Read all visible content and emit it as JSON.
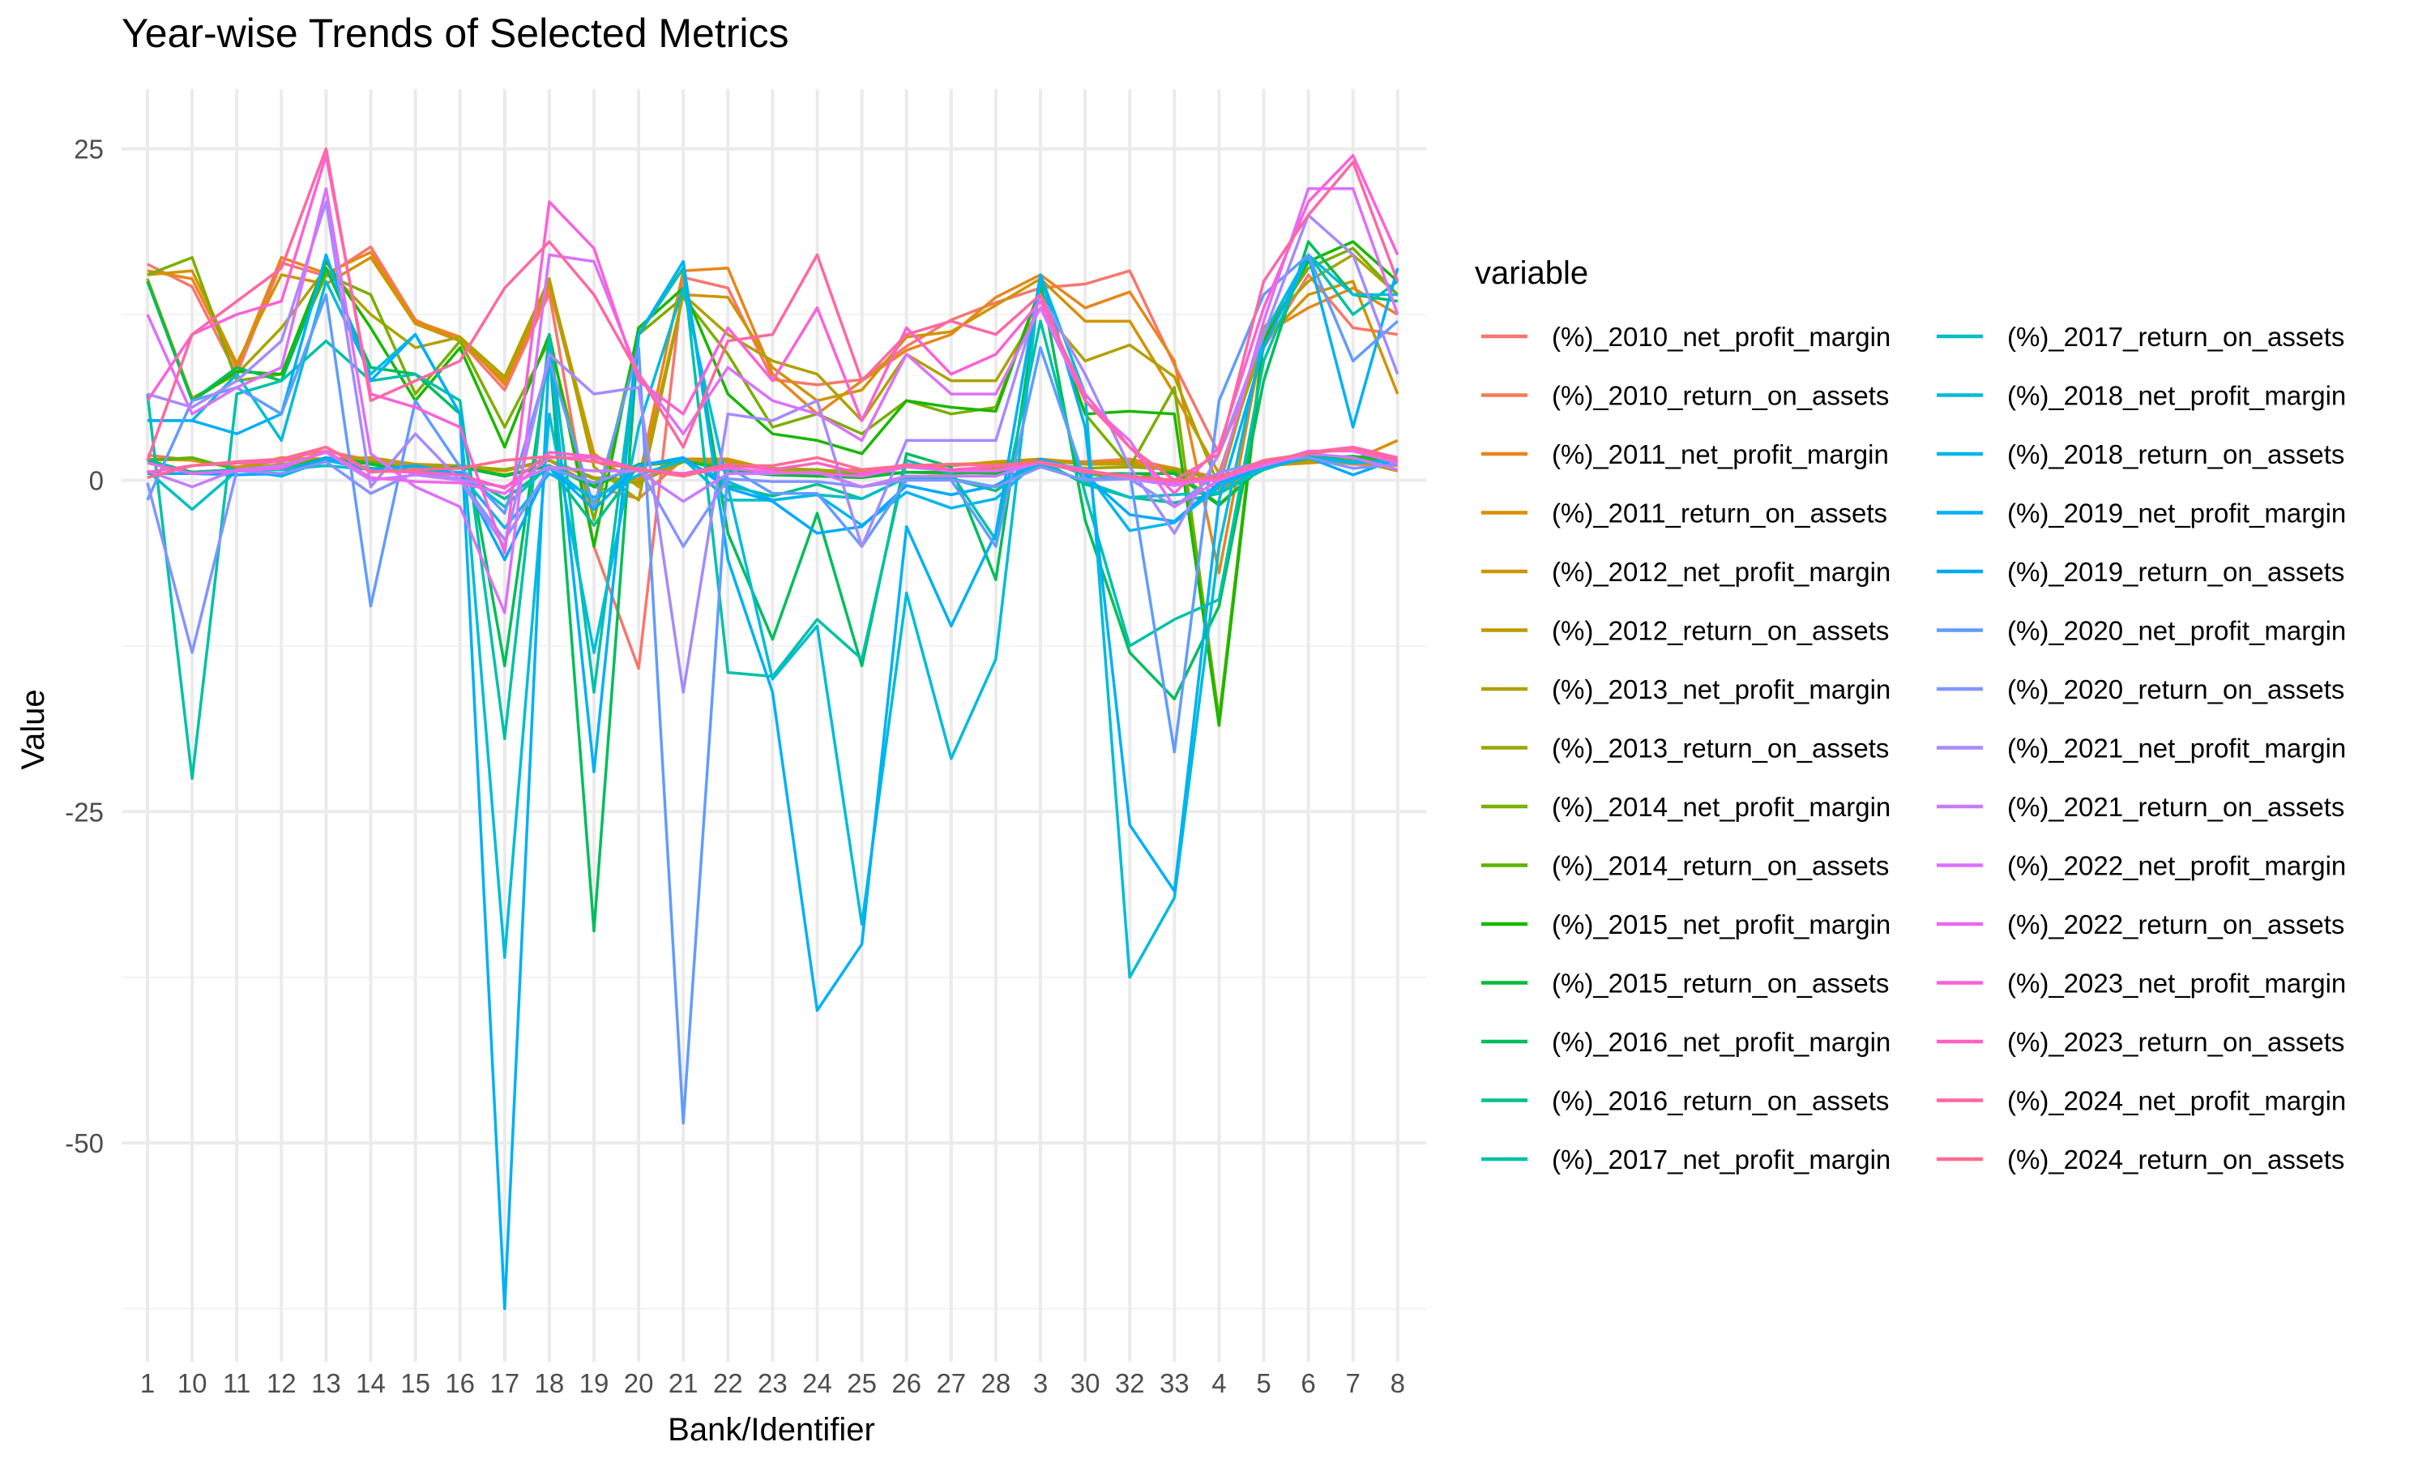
{
  "chart_data": {
    "type": "line",
    "title": "Year-wise Trends of Selected Metrics",
    "xlabel": "Bank/Identifier",
    "ylabel": "Value",
    "categories": [
      "1",
      "10",
      "11",
      "12",
      "13",
      "14",
      "15",
      "16",
      "17",
      "18",
      "19",
      "20",
      "21",
      "22",
      "23",
      "24",
      "25",
      "26",
      "27",
      "28",
      "3",
      "30",
      "32",
      "33",
      "4",
      "5",
      "6",
      "7",
      "8"
    ],
    "ylim": [
      -66.5,
      29.5
    ],
    "yticks": [
      -50,
      -25,
      0,
      25
    ],
    "ytick_labels": [
      "-50",
      "-25",
      "0",
      "25"
    ],
    "grid": true,
    "legend": {
      "title": "variable",
      "placement": "right",
      "columns": 2
    },
    "series": [
      {
        "name": "(%)_2010_net_profit_margin",
        "color": "#F8766D",
        "values": [
          16.3,
          14.6,
          8.0,
          16.4,
          15.4,
          17.6,
          12.1,
          10.5,
          6.8,
          14.1,
          -5.0,
          -14.2,
          15.3,
          14.5,
          7.6,
          7.2,
          7.6,
          10.1,
          12.1,
          13.4,
          14.5,
          14.8,
          15.8,
          8.7,
          2.0,
          10.0,
          15.5,
          11.5,
          11.0
        ]
      },
      {
        "name": "(%)_2010_return_on_assets",
        "color": "#F27D52",
        "values": [
          1.9,
          1.5,
          1.0,
          1.6,
          2.2,
          1.5,
          1.2,
          1.0,
          0.7,
          1.5,
          -0.5,
          -1.4,
          1.6,
          1.4,
          0.8,
          0.7,
          0.8,
          1.0,
          1.2,
          1.3,
          1.5,
          1.4,
          1.6,
          0.9,
          0.2,
          1.0,
          1.6,
          1.2,
          1.1
        ]
      },
      {
        "name": "(%)_2011_net_profit_margin",
        "color": "#E7861B",
        "values": [
          15.8,
          15.2,
          8.5,
          16.8,
          15.6,
          17.2,
          12.0,
          10.8,
          7.2,
          14.6,
          1.5,
          0.0,
          15.8,
          16.0,
          8.0,
          5.0,
          7.5,
          9.8,
          11.0,
          13.8,
          15.5,
          13.0,
          14.2,
          9.0,
          -7.0,
          11.0,
          13.0,
          14.5,
          12.5
        ]
      },
      {
        "name": "(%)_2011_return_on_assets",
        "color": "#DB8E00",
        "values": [
          1.6,
          1.5,
          0.9,
          1.7,
          1.6,
          1.7,
          1.2,
          1.1,
          0.7,
          1.5,
          0.2,
          0.0,
          1.6,
          1.6,
          0.8,
          0.5,
          0.8,
          1.0,
          1.1,
          1.4,
          1.6,
          1.3,
          1.4,
          0.9,
          -0.7,
          1.1,
          1.3,
          1.5,
          3.0
        ]
      },
      {
        "name": "(%)_2012_net_profit_margin",
        "color": "#D09400",
        "values": [
          15.5,
          15.8,
          8.8,
          15.5,
          14.8,
          16.8,
          11.8,
          10.5,
          7.5,
          15.0,
          2.0,
          -0.5,
          14.0,
          13.8,
          8.5,
          6.0,
          6.8,
          10.8,
          11.2,
          13.2,
          15.2,
          12.0,
          12.0,
          6.5,
          0.5,
          10.5,
          14.0,
          15.0,
          6.5
        ]
      },
      {
        "name": "(%)_2012_return_on_assets",
        "color": "#BE9C00",
        "values": [
          1.5,
          1.6,
          0.9,
          1.5,
          1.5,
          1.7,
          1.2,
          1.0,
          0.8,
          1.5,
          0.2,
          -0.1,
          1.4,
          1.4,
          0.9,
          0.6,
          0.7,
          1.1,
          1.1,
          1.3,
          1.5,
          1.2,
          1.2,
          0.7,
          0.1,
          1.1,
          1.4,
          1.5,
          0.7
        ]
      },
      {
        "name": "(%)_2013_net_profit_margin",
        "color": "#AEA200",
        "values": [
          15.2,
          6.2,
          8.0,
          11.5,
          16.0,
          12.5,
          10.0,
          10.8,
          7.8,
          15.2,
          1.0,
          -1.5,
          14.0,
          11.0,
          9.0,
          8.0,
          4.5,
          9.5,
          7.5,
          7.5,
          13.0,
          9.0,
          10.2,
          7.8,
          -0.5,
          11.5,
          15.0,
          17.0,
          14.0
        ]
      },
      {
        "name": "(%)_2013_return_on_assets",
        "color": "#9CA700",
        "values": [
          1.5,
          0.6,
          0.8,
          1.2,
          1.6,
          1.3,
          1.0,
          1.1,
          0.8,
          1.5,
          0.1,
          -0.2,
          1.4,
          1.1,
          0.9,
          0.8,
          0.5,
          1.0,
          0.8,
          0.8,
          1.3,
          0.9,
          1.0,
          0.8,
          0.0,
          1.2,
          1.5,
          1.7,
          1.4
        ]
      },
      {
        "name": "(%)_2014_net_profit_margin",
        "color": "#7CAE00",
        "values": [
          15.5,
          16.8,
          7.5,
          8.0,
          15.5,
          14.0,
          6.5,
          10.5,
          4.0,
          10.5,
          -3.0,
          11.0,
          13.8,
          9.5,
          4.0,
          5.0,
          3.5,
          6.0,
          5.0,
          5.5,
          14.5,
          5.0,
          1.0,
          7.0,
          -18.0,
          11.0,
          16.0,
          17.5,
          14.0
        ]
      },
      {
        "name": "(%)_2014_return_on_assets",
        "color": "#5BB300",
        "values": [
          1.5,
          1.7,
          0.8,
          0.8,
          1.6,
          1.4,
          0.7,
          1.0,
          0.4,
          1.1,
          -0.3,
          1.1,
          1.4,
          1.0,
          0.4,
          0.5,
          0.4,
          0.6,
          0.5,
          0.6,
          1.5,
          0.5,
          0.1,
          0.7,
          -1.8,
          1.1,
          1.6,
          1.8,
          1.4
        ]
      },
      {
        "name": "(%)_2015_net_profit_margin",
        "color": "#19B700",
        "values": [
          15.0,
          6.0,
          8.2,
          8.0,
          16.5,
          11.5,
          6.0,
          10.0,
          2.5,
          11.0,
          -5.0,
          11.5,
          14.5,
          6.5,
          3.5,
          3.0,
          2.0,
          6.0,
          5.5,
          5.2,
          14.5,
          5.0,
          5.2,
          5.0,
          -18.5,
          10.5,
          16.5,
          18.0,
          15.0
        ]
      },
      {
        "name": "(%)_2015_return_on_assets",
        "color": "#00BA38",
        "values": [
          1.5,
          0.6,
          0.8,
          0.8,
          1.7,
          1.2,
          0.6,
          1.0,
          0.3,
          1.1,
          -0.5,
          1.2,
          1.5,
          0.7,
          0.4,
          0.3,
          0.2,
          0.6,
          0.6,
          0.5,
          1.5,
          0.5,
          0.5,
          0.5,
          -1.9,
          1.1,
          1.7,
          1.8,
          1.5
        ]
      },
      {
        "name": "(%)_2016_net_profit_margin",
        "color": "#00BD5C",
        "values": [
          15.0,
          6.0,
          8.5,
          7.5,
          16.0,
          8.5,
          8.0,
          5.0,
          -14.0,
          10.0,
          -34.0,
          11.0,
          16.0,
          -4.0,
          -12.0,
          -2.5,
          -14.0,
          2.0,
          1.0,
          -7.5,
          15.0,
          -3.0,
          -13.0,
          -16.5,
          -9.5,
          7.5,
          18.0,
          14.0,
          13.5
        ]
      },
      {
        "name": "(%)_2016_return_on_assets",
        "color": "#00C08B",
        "values": [
          1.5,
          0.6,
          0.8,
          0.8,
          1.6,
          0.9,
          0.8,
          0.5,
          -1.4,
          1.0,
          -3.4,
          1.1,
          1.6,
          -0.4,
          -1.2,
          -0.3,
          -1.4,
          0.2,
          0.1,
          -0.8,
          1.5,
          -0.3,
          -1.3,
          -1.7,
          -1.0,
          0.8,
          1.8,
          1.4,
          1.4
        ]
      },
      {
        "name": "(%)_2017_net_profit_margin",
        "color": "#00C1A7",
        "values": [
          6.5,
          -22.5,
          6.5,
          7.5,
          10.5,
          7.5,
          8.0,
          6.0,
          -19.5,
          11.0,
          -16.0,
          11.0,
          16.0,
          -14.5,
          -14.8,
          -10.5,
          -13.5,
          1.5,
          0.5,
          -4.5,
          12.0,
          -1.0,
          -12.5,
          -10.5,
          -9.0,
          9.0,
          17.0,
          12.5,
          15.0
        ]
      },
      {
        "name": "(%)_2017_return_on_assets",
        "color": "#00BFC4",
        "values": [
          0.7,
          -2.2,
          0.7,
          0.8,
          1.1,
          0.8,
          0.8,
          0.6,
          -2.0,
          1.1,
          -1.6,
          1.1,
          1.6,
          -1.5,
          -1.5,
          -1.1,
          -1.4,
          0.2,
          0.1,
          -0.5,
          1.2,
          -0.1,
          -1.3,
          -1.1,
          -0.9,
          0.9,
          1.7,
          1.3,
          1.5
        ]
      },
      {
        "name": "(%)_2018_net_profit_margin",
        "color": "#00BCD8",
        "values": [
          4.5,
          4.5,
          8.0,
          3.0,
          15.0,
          8.0,
          11.0,
          5.0,
          -36.0,
          5.0,
          -13.0,
          4.0,
          14.5,
          -0.5,
          -15.0,
          -11.0,
          -33.5,
          -8.5,
          -21.0,
          -13.5,
          15.5,
          6.5,
          -37.5,
          -31.5,
          -5.0,
          11.0,
          17.0,
          14.0,
          14.0
        ]
      },
      {
        "name": "(%)_2018_return_on_assets",
        "color": "#00B6EB",
        "values": [
          0.5,
          0.5,
          0.8,
          0.3,
          1.5,
          0.8,
          1.1,
          0.5,
          -3.6,
          0.5,
          -1.3,
          0.4,
          1.5,
          -0.1,
          -1.5,
          -1.1,
          -3.4,
          -0.9,
          -2.1,
          -1.4,
          1.6,
          0.7,
          -3.8,
          -3.2,
          -0.5,
          1.1,
          1.7,
          1.4,
          1.4
        ]
      },
      {
        "name": "(%)_2019_net_profit_margin",
        "color": "#00B0F6",
        "values": [
          4.5,
          4.5,
          3.5,
          5.0,
          17.0,
          7.5,
          11.0,
          5.0,
          -62.5,
          10.0,
          -22.0,
          11.0,
          16.5,
          -6.0,
          -16.0,
          -40.0,
          -35.0,
          -3.5,
          -11.0,
          -4.0,
          15.5,
          4.0,
          -26.0,
          -31.0,
          -1.5,
          10.0,
          17.0,
          4.0,
          16.0
        ]
      },
      {
        "name": "(%)_2019_return_on_assets",
        "color": "#00A9FF",
        "values": [
          0.5,
          0.5,
          0.4,
          0.5,
          1.7,
          0.8,
          1.1,
          0.5,
          -6.0,
          1.0,
          -2.2,
          1.1,
          1.7,
          -0.6,
          -1.6,
          -4.0,
          -3.5,
          -0.4,
          -1.1,
          -0.4,
          1.6,
          0.4,
          -2.6,
          -3.1,
          -0.2,
          1.0,
          1.7,
          0.4,
          1.6
        ]
      },
      {
        "name": "(%)_2020_net_profit_margin",
        "color": "#619CFF",
        "values": [
          -1.5,
          6.0,
          7.0,
          5.0,
          14.0,
          -9.5,
          6.0,
          1.0,
          -2.5,
          9.0,
          -2.0,
          10.0,
          -48.5,
          1.0,
          -1.0,
          -1.0,
          -5.0,
          0.0,
          0.0,
          -5.0,
          10.0,
          0.0,
          0.5,
          -20.5,
          6.0,
          14.0,
          17.0,
          9.0,
          12.0
        ]
      },
      {
        "name": "(%)_2020_return_on_assets",
        "color": "#8494FF",
        "values": [
          -0.2,
          -13.0,
          0.7,
          0.5,
          1.4,
          -1.0,
          0.6,
          0.1,
          -4.5,
          0.9,
          -0.2,
          1.0,
          -5.0,
          0.1,
          -0.1,
          -0.1,
          -0.5,
          0.0,
          0.0,
          -0.5,
          1.0,
          0.0,
          0.1,
          -2.0,
          0.6,
          1.4,
          1.7,
          0.9,
          1.2
        ]
      },
      {
        "name": "(%)_2021_net_profit_margin",
        "color": "#A58AFF",
        "values": [
          6.5,
          5.5,
          7.5,
          10.5,
          21.0,
          -0.5,
          3.5,
          0.0,
          -5.0,
          9.5,
          6.5,
          7.0,
          -16.0,
          5.0,
          4.5,
          6.0,
          -5.0,
          3.0,
          3.0,
          3.0,
          14.0,
          8.0,
          1.0,
          -4.0,
          2.0,
          11.0,
          20.0,
          17.0,
          8.0
        ]
      },
      {
        "name": "(%)_2021_return_on_assets",
        "color": "#C77CFF",
        "values": [
          0.7,
          -0.5,
          0.8,
          1.1,
          2.1,
          0.0,
          0.4,
          0.0,
          -0.5,
          1.0,
          0.7,
          0.7,
          -1.6,
          0.5,
          0.5,
          0.6,
          -0.5,
          0.3,
          0.3,
          0.3,
          1.4,
          0.8,
          0.1,
          -0.4,
          0.2,
          1.1,
          2.0,
          1.7,
          0.8
        ]
      },
      {
        "name": "(%)_2022_net_profit_margin",
        "color": "#DC71FA",
        "values": [
          12.5,
          5.0,
          7.0,
          8.5,
          22.0,
          2.0,
          -0.5,
          -2.0,
          -10.0,
          17.0,
          16.5,
          8.0,
          3.5,
          8.5,
          6.0,
          5.0,
          3.0,
          9.5,
          6.5,
          6.5,
          13.0,
          6.0,
          3.0,
          -2.0,
          0.0,
          12.0,
          22.0,
          22.0,
          12.5
        ]
      },
      {
        "name": "(%)_2022_return_on_assets",
        "color": "#ED68ED",
        "values": [
          1.3,
          0.5,
          0.7,
          0.9,
          2.2,
          0.2,
          -0.1,
          -0.2,
          -1.0,
          1.7,
          1.7,
          0.8,
          0.4,
          0.9,
          0.6,
          0.5,
          0.3,
          1.0,
          0.7,
          0.7,
          1.3,
          0.6,
          0.3,
          -0.2,
          0.0,
          1.2,
          2.2,
          2.2,
          1.3
        ]
      },
      {
        "name": "(%)_2023_net_profit_margin",
        "color": "#FB61D7",
        "values": [
          6.0,
          11.0,
          12.5,
          13.5,
          24.5,
          6.5,
          5.5,
          4.0,
          -5.5,
          21.0,
          17.5,
          7.5,
          5.0,
          11.5,
          7.5,
          13.0,
          4.5,
          11.5,
          8.0,
          9.5,
          13.5,
          6.5,
          2.5,
          -1.0,
          2.5,
          13.0,
          21.0,
          24.5,
          17.0
        ]
      },
      {
        "name": "(%)_2023_return_on_assets",
        "color": "#FF61C3",
        "values": [
          0.6,
          1.1,
          1.3,
          1.4,
          2.5,
          0.7,
          0.6,
          0.4,
          -0.6,
          2.1,
          1.8,
          0.8,
          0.5,
          1.2,
          0.8,
          1.3,
          0.5,
          1.2,
          0.8,
          1.0,
          1.4,
          0.7,
          0.3,
          -0.1,
          0.3,
          1.3,
          2.1,
          2.5,
          1.7
        ]
      },
      {
        "name": "(%)_2024_net_profit_margin",
        "color": "#FF67A4",
        "values": [
          1.5,
          11.0,
          13.5,
          16.0,
          25.0,
          6.0,
          7.5,
          9.0,
          14.5,
          18.0,
          14.0,
          8.0,
          2.5,
          10.5,
          11.0,
          17.0,
          7.5,
          11.0,
          12.0,
          11.0,
          14.0,
          6.0,
          2.5,
          0.0,
          2.0,
          15.0,
          20.0,
          24.0,
          15.0
        ]
      },
      {
        "name": "(%)_2024_return_on_assets",
        "color": "#FF6C91",
        "values": [
          0.2,
          1.1,
          1.4,
          1.6,
          2.5,
          0.6,
          0.8,
          0.9,
          1.5,
          1.8,
          1.4,
          0.8,
          0.3,
          1.1,
          1.1,
          1.7,
          0.8,
          1.1,
          1.2,
          1.1,
          1.4,
          0.6,
          0.3,
          0.0,
          0.2,
          1.5,
          2.0,
          2.4,
          1.5
        ]
      }
    ]
  }
}
